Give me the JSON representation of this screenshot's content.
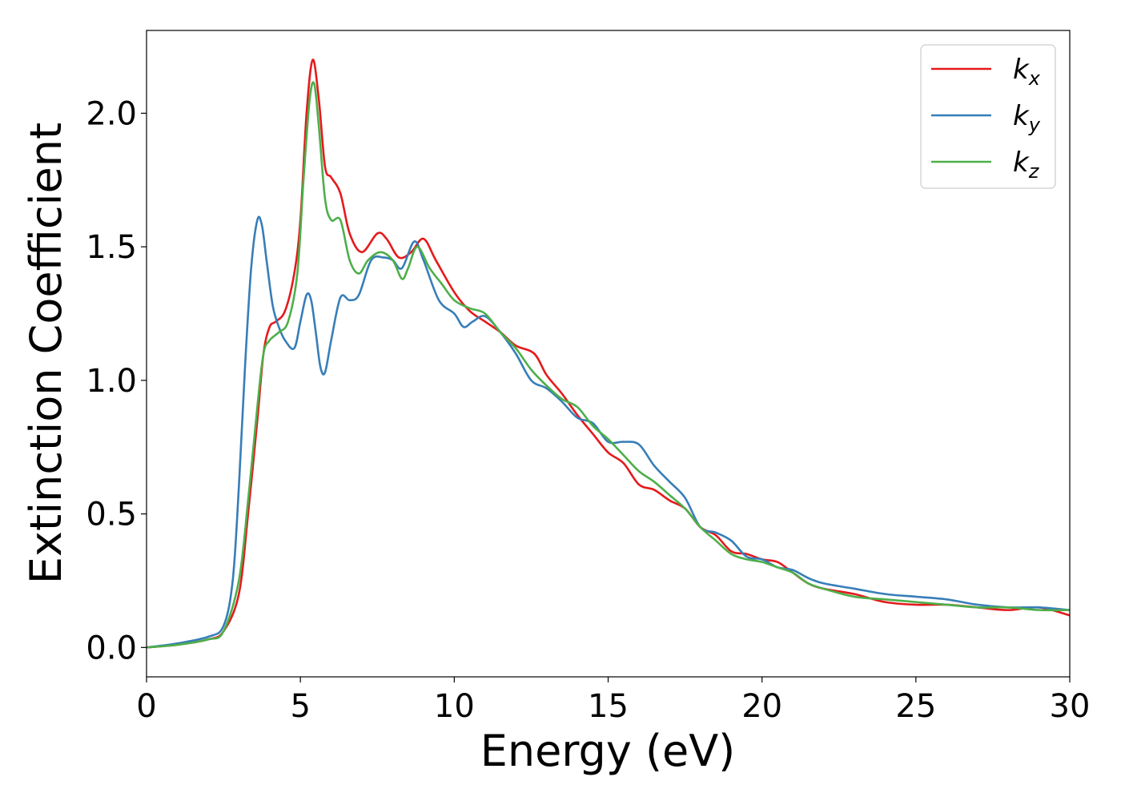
{
  "chart_data": {
    "type": "line",
    "title": "",
    "xlabel": "Energy (eV)",
    "ylabel": "Extinction Coefficient",
    "xlim": [
      0,
      30
    ],
    "ylim": [
      -0.11,
      2.31
    ],
    "xticks": [
      0,
      5,
      10,
      15,
      20,
      25,
      30
    ],
    "xtick_labels": [
      "0",
      "5",
      "10",
      "15",
      "20",
      "25",
      "30"
    ],
    "yticks": [
      0.0,
      0.5,
      1.0,
      1.5,
      2.0
    ],
    "ytick_labels": [
      "0.0",
      "0.5",
      "1.0",
      "1.5",
      "2.0"
    ],
    "grid": false,
    "legend_position": "top-right",
    "series": [
      {
        "name": "k_x",
        "legend_base": "k",
        "legend_sub": "x",
        "color": "#e41a1c",
        "x": [
          0,
          1,
          2,
          2.5,
          3,
          3.3,
          3.6,
          3.8,
          4.0,
          4.2,
          4.5,
          4.8,
          5.0,
          5.2,
          5.4,
          5.6,
          5.8,
          6.0,
          6.3,
          6.6,
          7.0,
          7.5,
          7.8,
          8.2,
          8.6,
          9.0,
          9.4,
          10.0,
          10.5,
          11.0,
          11.5,
          12.0,
          12.6,
          13.0,
          13.5,
          14.0,
          14.5,
          15.0,
          15.5,
          16.0,
          16.5,
          17.0,
          17.5,
          18.0,
          18.5,
          19.0,
          19.5,
          20.0,
          20.5,
          21.0,
          21.5,
          22.0,
          23.0,
          24.0,
          25.0,
          26.0,
          27.0,
          28.0,
          29.0,
          30.0
        ],
        "y": [
          0.0,
          0.01,
          0.03,
          0.06,
          0.2,
          0.5,
          0.85,
          1.1,
          1.2,
          1.22,
          1.26,
          1.4,
          1.6,
          2.0,
          2.2,
          2.05,
          1.8,
          1.76,
          1.7,
          1.55,
          1.48,
          1.55,
          1.53,
          1.46,
          1.48,
          1.53,
          1.45,
          1.33,
          1.26,
          1.22,
          1.18,
          1.13,
          1.1,
          1.02,
          0.95,
          0.87,
          0.8,
          0.73,
          0.69,
          0.61,
          0.59,
          0.55,
          0.52,
          0.45,
          0.42,
          0.36,
          0.35,
          0.33,
          0.32,
          0.28,
          0.24,
          0.22,
          0.2,
          0.17,
          0.16,
          0.16,
          0.15,
          0.14,
          0.15,
          0.12
        ]
      },
      {
        "name": "k_y",
        "legend_base": "k",
        "legend_sub": "y",
        "color": "#377eb8",
        "x": [
          0,
          1,
          2,
          2.5,
          2.8,
          3.0,
          3.2,
          3.4,
          3.6,
          3.75,
          3.9,
          4.1,
          4.3,
          4.5,
          4.8,
          5.0,
          5.2,
          5.35,
          5.5,
          5.65,
          5.8,
          6.0,
          6.3,
          6.6,
          6.9,
          7.3,
          7.7,
          8.0,
          8.3,
          8.7,
          9.0,
          9.5,
          10.0,
          10.3,
          10.6,
          11.0,
          11.5,
          12.0,
          12.5,
          13.0,
          13.5,
          14.0,
          14.5,
          15.0,
          15.5,
          16.0,
          16.5,
          17.0,
          17.5,
          18.0,
          18.5,
          19.0,
          19.5,
          20.0,
          20.5,
          21.0,
          21.5,
          22.0,
          23.0,
          24.0,
          25.0,
          26.0,
          27.0,
          28.0,
          29.0,
          30.0
        ],
        "y": [
          0.0,
          0.015,
          0.04,
          0.08,
          0.25,
          0.6,
          1.05,
          1.42,
          1.6,
          1.58,
          1.45,
          1.28,
          1.2,
          1.15,
          1.12,
          1.22,
          1.32,
          1.3,
          1.18,
          1.05,
          1.03,
          1.15,
          1.31,
          1.3,
          1.32,
          1.45,
          1.46,
          1.45,
          1.42,
          1.52,
          1.45,
          1.3,
          1.25,
          1.2,
          1.22,
          1.24,
          1.18,
          1.1,
          1.0,
          0.97,
          0.92,
          0.86,
          0.84,
          0.77,
          0.77,
          0.76,
          0.68,
          0.62,
          0.56,
          0.45,
          0.43,
          0.4,
          0.34,
          0.33,
          0.3,
          0.29,
          0.26,
          0.24,
          0.22,
          0.2,
          0.19,
          0.18,
          0.16,
          0.15,
          0.15,
          0.14
        ]
      },
      {
        "name": "k_z",
        "legend_base": "k",
        "legend_sub": "z",
        "color": "#4daf4a",
        "x": [
          0,
          1,
          2,
          2.5,
          3,
          3.3,
          3.6,
          3.8,
          4.0,
          4.3,
          4.6,
          4.9,
          5.1,
          5.3,
          5.45,
          5.6,
          5.8,
          6.0,
          6.3,
          6.6,
          6.9,
          7.2,
          7.6,
          8.0,
          8.3,
          8.5,
          8.8,
          9.2,
          9.6,
          10.0,
          10.5,
          11.0,
          11.5,
          12.0,
          12.5,
          13.0,
          13.5,
          14.0,
          14.5,
          15.0,
          15.5,
          16.0,
          16.5,
          17.0,
          17.5,
          18.0,
          18.5,
          19.0,
          19.5,
          20.0,
          20.5,
          21.0,
          21.5,
          22.0,
          23.0,
          24.0,
          25.0,
          26.0,
          27.0,
          28.0,
          29.0,
          30.0
        ],
        "y": [
          0.0,
          0.01,
          0.03,
          0.06,
          0.25,
          0.55,
          0.9,
          1.1,
          1.15,
          1.18,
          1.22,
          1.4,
          1.75,
          2.05,
          2.11,
          1.95,
          1.68,
          1.6,
          1.6,
          1.45,
          1.4,
          1.45,
          1.48,
          1.45,
          1.38,
          1.42,
          1.5,
          1.42,
          1.36,
          1.3,
          1.27,
          1.25,
          1.18,
          1.12,
          1.04,
          0.98,
          0.93,
          0.9,
          0.83,
          0.78,
          0.72,
          0.66,
          0.62,
          0.57,
          0.52,
          0.45,
          0.4,
          0.35,
          0.33,
          0.32,
          0.3,
          0.28,
          0.24,
          0.22,
          0.19,
          0.18,
          0.17,
          0.16,
          0.15,
          0.15,
          0.14,
          0.14
        ]
      }
    ]
  }
}
